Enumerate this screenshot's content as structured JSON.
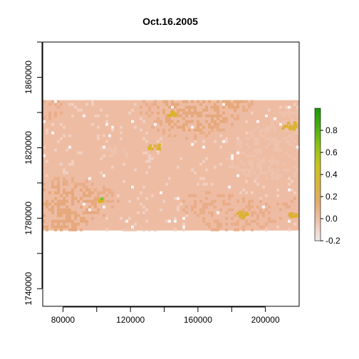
{
  "chart_data": {
    "type": "heatmap",
    "title": "Oct.16.2005",
    "xlabel": "",
    "ylabel": "",
    "xlim": [
      68000,
      220000
    ],
    "ylim": [
      1730000,
      1880000
    ],
    "x_ticks": [
      80000,
      100000,
      120000,
      140000,
      160000,
      180000,
      200000
    ],
    "x_tick_labels": [
      "80000",
      "120000",
      "160000",
      "200000"
    ],
    "x_tick_label_values": [
      80000,
      120000,
      160000,
      200000
    ],
    "y_ticks": [
      1740000,
      1760000,
      1780000,
      1800000,
      1820000,
      1840000,
      1860000,
      1880000
    ],
    "y_tick_labels": [
      "1740000",
      "1780000",
      "1820000",
      "1860000"
    ],
    "y_tick_label_values": [
      1740000,
      1780000,
      1820000,
      1860000
    ],
    "raster_extent": {
      "xmin": 68000,
      "xmax": 220000,
      "ymin": 1773000,
      "ymax": 1847000
    },
    "value_range": [
      -0.2,
      1.0
    ],
    "typical_value": 0.1,
    "legend": {
      "placement": "right",
      "ticks": [
        -0.2,
        0,
        0.2,
        0.4,
        0.6,
        0.8
      ],
      "tick_labels": [
        "-0.2",
        "0.0",
        "0.2",
        "0.4",
        "0.6",
        "0.8"
      ],
      "color_stops": [
        "#f0eaea",
        "#eec4b0",
        "#e3ac6c",
        "#d9b63a",
        "#c8c41a",
        "#8fc214",
        "#4aae10",
        "#1a9a08"
      ]
    },
    "grid": false
  }
}
